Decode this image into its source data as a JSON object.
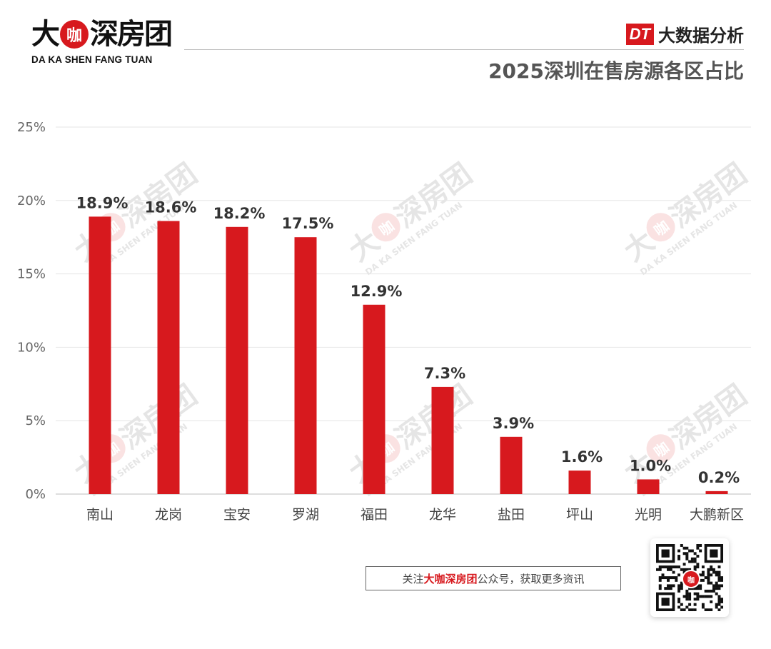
{
  "logo": {
    "char1": "大",
    "char2": "咖",
    "char3": "深房团",
    "subtitle": "DA KA SHEN FANG TUAN"
  },
  "badge": {
    "box": "DT",
    "text": "大数据分析"
  },
  "colors": {
    "bar": "#d7191e",
    "accent": "#d7191e",
    "grid": "#e6e6e6",
    "axis_text": "#666666",
    "label_text": "#333333"
  },
  "chart_data": {
    "type": "bar",
    "title": "2025深圳在售房源各区占比",
    "categories": [
      "南山",
      "龙岗",
      "宝安",
      "罗湖",
      "福田",
      "龙华",
      "盐田",
      "坪山",
      "光明",
      "大鹏新区"
    ],
    "values": [
      18.9,
      18.6,
      18.2,
      17.5,
      12.9,
      7.3,
      3.9,
      1.6,
      1.0,
      0.2
    ],
    "data_labels": [
      "18.9%",
      "18.6%",
      "18.2%",
      "17.5%",
      "12.9%",
      "7.3%",
      "3.9%",
      "1.6%",
      "1.0%",
      "0.2%"
    ],
    "yticks": [
      0,
      5,
      10,
      15,
      20,
      25
    ],
    "ytick_labels": [
      "0%",
      "5%",
      "10%",
      "15%",
      "20%",
      "25%"
    ],
    "ylim": [
      0,
      25
    ],
    "xlabel": "",
    "ylabel": "",
    "grid": true
  },
  "footer": {
    "prefix": "关注",
    "brand": "大咖深房团",
    "suffix": "公众号，获取更多资讯"
  },
  "qr": {
    "center_char": "咖",
    "icon": "qr-code-icon"
  }
}
